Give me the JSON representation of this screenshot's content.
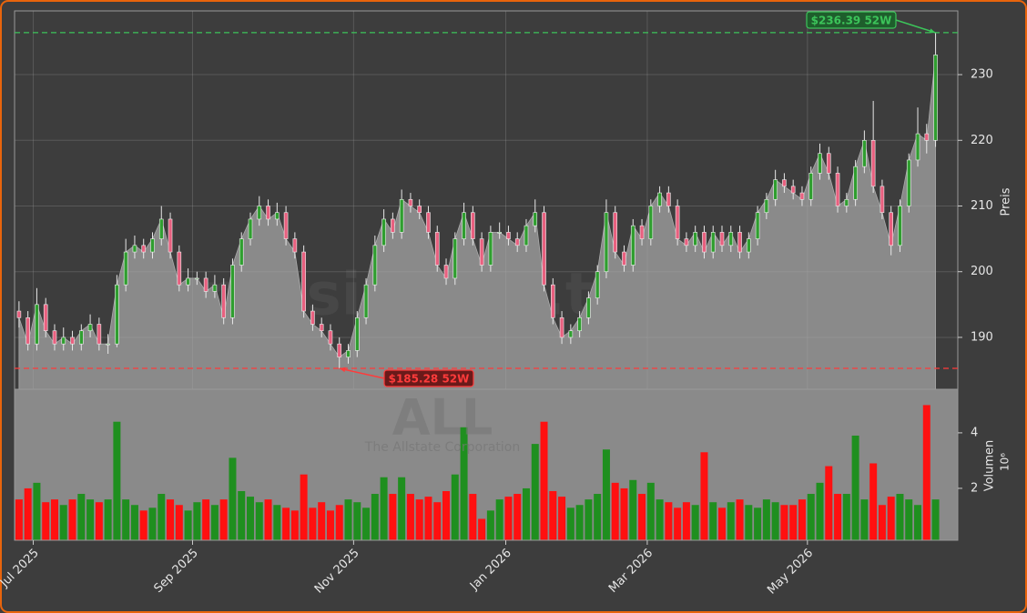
{
  "chart_data": {
    "type": "candlestick",
    "watermark": "forexsignale.trade",
    "symbol": "ALL",
    "company": "The Allstate Corporation",
    "ylabel": "Preis",
    "volume_label": "Volumen",
    "volume_unit": "10⁶",
    "xlim": [
      -0.5,
      105.5
    ],
    "xticks": [
      {
        "value": 1.6,
        "label": "Jul 2025"
      },
      {
        "value": 19.5,
        "label": "Sep 2025"
      },
      {
        "value": 37.6,
        "label": "Nov 2025"
      },
      {
        "value": 54.7,
        "label": "Jan 2026"
      },
      {
        "value": 70.6,
        "label": "Mar 2026"
      },
      {
        "value": 88.6,
        "label": "May 2026"
      }
    ],
    "ylim": [
      182.1,
      239.7
    ],
    "yticks": [
      190,
      200,
      210,
      220,
      230
    ],
    "volume_ylim": [
      0.13,
      5.57
    ],
    "volume_yticks": [
      2,
      4
    ],
    "grid": true,
    "up_color": "#2f9e2f",
    "down_color": "#e8607f",
    "volume_up_color": "#1f8f1f",
    "volume_down_color": "#ff1010",
    "area_color": "#8a8a8a",
    "open": [
      194,
      193,
      189,
      195,
      191,
      189,
      190,
      189,
      191,
      192,
      189,
      189,
      198,
      203,
      204,
      203,
      205,
      208,
      203,
      198,
      199,
      199,
      197,
      198,
      193,
      201,
      205,
      208,
      210,
      208,
      209,
      205,
      203,
      194,
      192,
      191,
      189,
      187,
      188,
      193,
      198,
      204,
      208,
      206,
      211,
      210,
      209,
      206,
      201,
      199,
      205,
      209,
      205,
      201,
      206,
      206,
      205,
      204,
      207,
      209,
      198,
      193,
      190,
      191,
      193,
      196,
      200,
      209,
      203,
      201,
      207,
      205,
      210,
      212,
      210,
      205,
      204,
      206,
      203,
      206,
      204,
      206,
      203,
      205,
      209,
      211,
      214,
      213,
      212,
      211,
      215,
      218,
      215,
      210,
      211,
      216,
      220,
      213,
      209,
      204,
      210,
      217,
      221,
      220
    ],
    "high": [
      195.5,
      194,
      197.5,
      196,
      192,
      191.5,
      191,
      192,
      193.5,
      193,
      190.5,
      199.5,
      205,
      205.5,
      205,
      206,
      210,
      209,
      204,
      200.5,
      200,
      200,
      199.5,
      199,
      202,
      206,
      209,
      211.5,
      211,
      210.5,
      210,
      206,
      204,
      195,
      193,
      192,
      190,
      189,
      194,
      199,
      205.5,
      209.5,
      209,
      212.5,
      212,
      211,
      210,
      207,
      202,
      206,
      210.5,
      210,
      206,
      207,
      207.5,
      207,
      206,
      208,
      211,
      210,
      199,
      194,
      192,
      194,
      197,
      201,
      211,
      210,
      204,
      208,
      208,
      211,
      213,
      213,
      211,
      206,
      207,
      207,
      207,
      207,
      207,
      207,
      206,
      210,
      212,
      215.5,
      215,
      214,
      213,
      216,
      219.5,
      219,
      216,
      212,
      217,
      221.5,
      226,
      214,
      210,
      211,
      218,
      225,
      222.5,
      236.39
    ],
    "low": [
      191.5,
      188,
      188,
      190,
      188,
      188,
      188,
      188,
      190,
      188,
      187.5,
      188.5,
      197,
      202,
      202,
      202,
      204,
      202,
      197,
      197,
      198,
      196,
      196,
      192,
      192,
      200,
      204,
      207,
      207,
      207,
      204,
      202,
      193,
      191,
      190,
      188,
      185.28,
      186,
      187,
      192,
      197,
      203,
      205,
      205,
      209,
      208,
      205,
      200,
      198,
      198,
      204,
      204,
      200,
      200,
      205,
      204,
      203,
      203,
      206,
      197,
      192,
      189,
      189,
      190,
      192,
      195,
      199,
      202,
      200,
      200,
      204,
      204,
      209,
      209,
      204,
      203,
      203,
      202,
      202,
      203,
      203,
      202,
      202,
      204,
      208,
      210,
      212,
      211,
      210,
      210,
      214,
      214,
      209,
      209,
      210,
      215,
      212,
      208,
      202.5,
      203,
      209,
      216,
      218,
      219
    ],
    "close": [
      193,
      189,
      195,
      191,
      189,
      190,
      189,
      191,
      192,
      189,
      189,
      198,
      203,
      204,
      203,
      205,
      208,
      203,
      198,
      199,
      199,
      197,
      198,
      193,
      201,
      205,
      208,
      210,
      208,
      209,
      205,
      203,
      194,
      192,
      191,
      189,
      187,
      188,
      193,
      198,
      204,
      208,
      206,
      211,
      210,
      209,
      206,
      201,
      199,
      205,
      209,
      205,
      201,
      206,
      206,
      205,
      204,
      207,
      209,
      198,
      193,
      190,
      191,
      193,
      196,
      200,
      209,
      203,
      201,
      207,
      205,
      210,
      212,
      210,
      205,
      204,
      206,
      203,
      206,
      204,
      206,
      203,
      205,
      209,
      211,
      214,
      213,
      212,
      211,
      215,
      218,
      215,
      210,
      211,
      216,
      220,
      213,
      209,
      204,
      210,
      217,
      221,
      220,
      233
    ],
    "volume": [
      1.6,
      2.0,
      2.2,
      1.5,
      1.6,
      1.4,
      1.6,
      1.8,
      1.6,
      1.5,
      1.6,
      4.4,
      1.6,
      1.4,
      1.2,
      1.3,
      1.8,
      1.6,
      1.4,
      1.2,
      1.5,
      1.6,
      1.4,
      1.6,
      3.1,
      1.9,
      1.7,
      1.5,
      1.6,
      1.4,
      1.3,
      1.2,
      2.5,
      1.3,
      1.5,
      1.2,
      1.4,
      1.6,
      1.5,
      1.3,
      1.8,
      2.4,
      1.8,
      2.4,
      1.8,
      1.6,
      1.7,
      1.5,
      1.9,
      2.5,
      4.2,
      1.8,
      0.9,
      1.2,
      1.6,
      1.7,
      1.8,
      2.0,
      3.6,
      4.4,
      1.9,
      1.7,
      1.3,
      1.4,
      1.6,
      1.8,
      3.4,
      2.2,
      2.0,
      2.3,
      1.8,
      2.2,
      1.6,
      1.5,
      1.3,
      1.5,
      1.4,
      3.3,
      1.5,
      1.3,
      1.5,
      1.6,
      1.4,
      1.3,
      1.6,
      1.5,
      1.4,
      1.4,
      1.6,
      1.8,
      2.2,
      2.8,
      1.8,
      1.8,
      3.9,
      1.6,
      2.9,
      1.4,
      1.7,
      1.8,
      1.6,
      1.4,
      5.0,
      1.6
    ],
    "annotations": [
      {
        "value": 236.39,
        "label": "$236.39 52W",
        "color": "#3cc45a",
        "box": "#1e5e2c"
      },
      {
        "value": 185.28,
        "label": "$185.28 52W",
        "color": "#ff3b3b",
        "box": "#6a1a1a"
      }
    ]
  }
}
